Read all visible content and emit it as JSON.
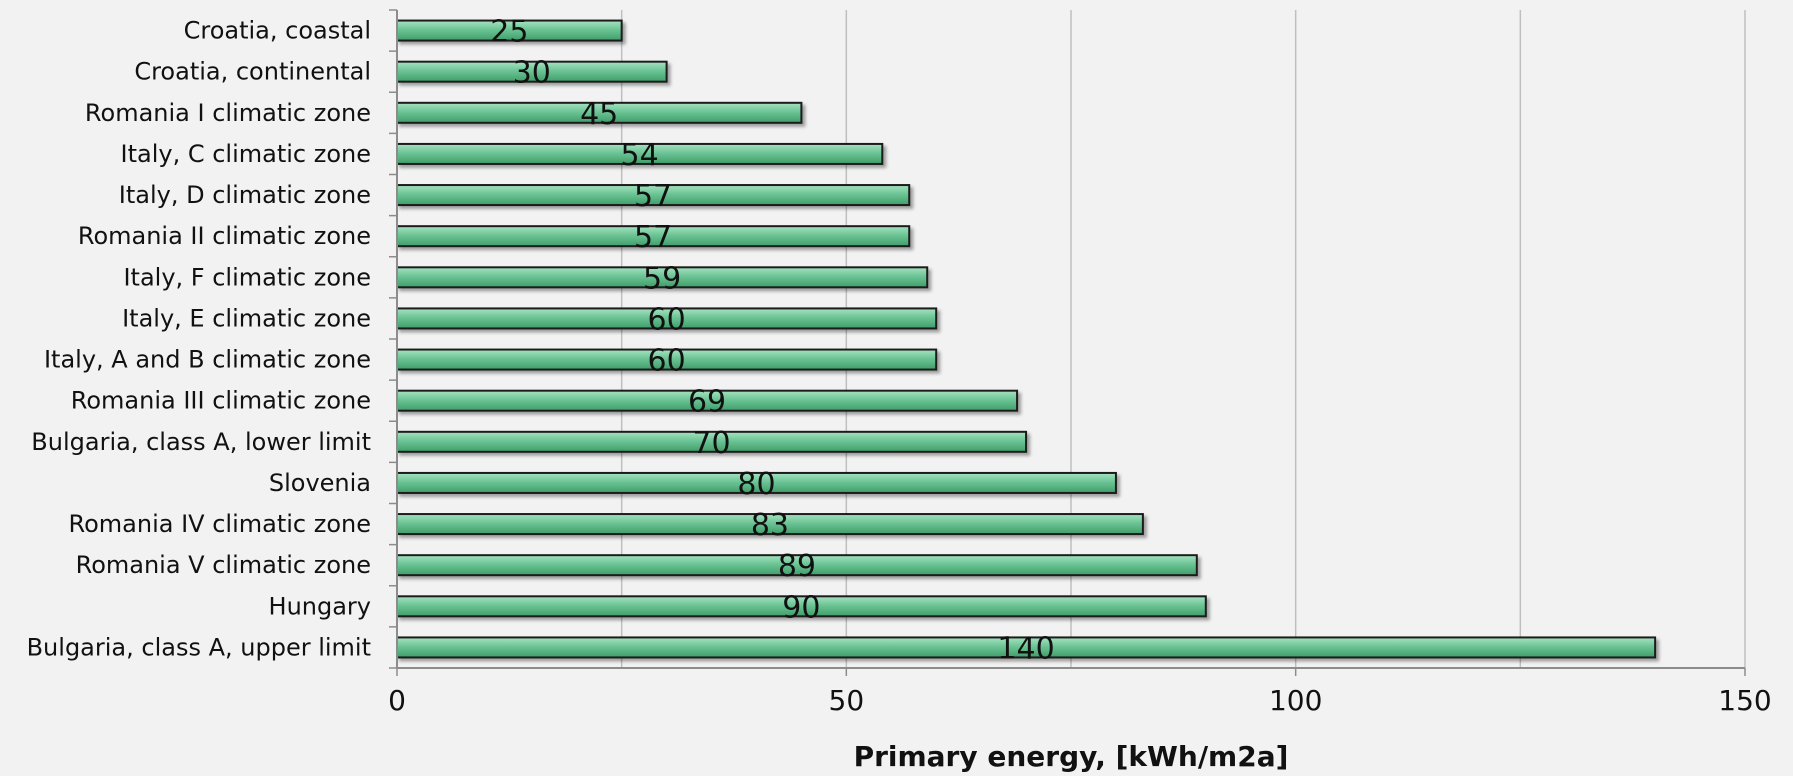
{
  "chart_data": {
    "type": "bar",
    "orientation": "horizontal",
    "categories": [
      "Croatia, coastal",
      "Croatia, continental",
      "Romania I climatic zone",
      "Italy, C climatic zone",
      "Italy, D climatic zone",
      "Romania II climatic zone",
      "Italy, F climatic zone",
      "Italy, E climatic zone",
      "Italy, A and B climatic zone",
      "Romania III climatic zone",
      "Bulgaria, class A, lower limit",
      "Slovenia",
      "Romania IV climatic zone",
      "Romania V climatic zone",
      "Hungary",
      "Bulgaria, class A, upper limit"
    ],
    "values": [
      25,
      30,
      45,
      54,
      57,
      57,
      59,
      60,
      60,
      69,
      70,
      80,
      83,
      89,
      90,
      140
    ],
    "data_labels": [
      "25",
      "30",
      "45",
      "54",
      "57",
      "57",
      "59",
      "60",
      "60",
      "69",
      "70",
      "80",
      "83",
      "89",
      "90",
      "140"
    ],
    "title": "",
    "xlabel": "Primary energy, [kWh/m2a]",
    "ylabel": "",
    "xlim": [
      0,
      150
    ],
    "x_ticks": [
      0,
      50,
      100,
      150
    ],
    "x_tick_labels": [
      "0",
      "50",
      "100",
      "150"
    ],
    "grid": true,
    "legend": "none",
    "colors": {
      "bar_fill_light": "#a6e3c1",
      "bar_fill_mid": "#6cc495",
      "bar_fill_dark": "#3f9e69",
      "bar_outline": "#1a1a1a",
      "gridline": "#bfbfbf",
      "axis": "#8c8c8c",
      "background": "#f2f2f2"
    }
  }
}
